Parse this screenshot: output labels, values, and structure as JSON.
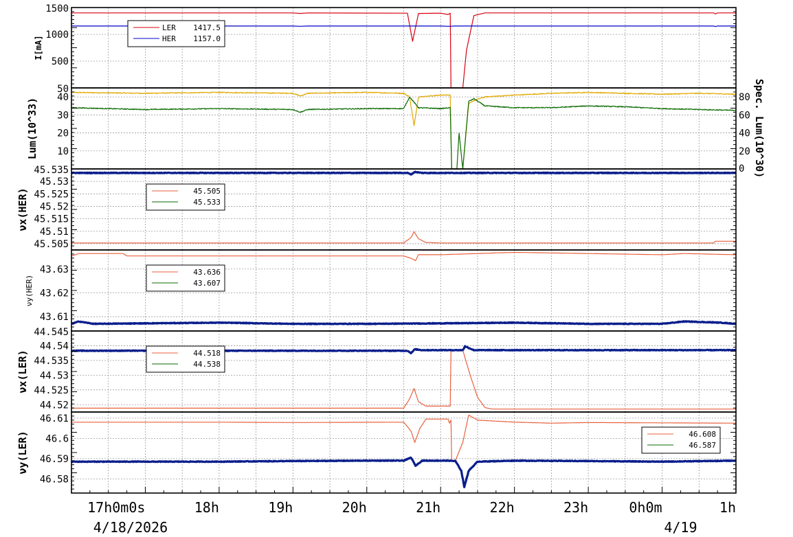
{
  "colors": {
    "ler_current": "#d7000f",
    "her_current": "#0000c8",
    "lum": "#e0a800",
    "spec_lum": "#0a6a00",
    "tune_setpoint": "#e8603c",
    "tune_measured": "#0a6a00",
    "tune_main": "#0a1e8c",
    "grid": "#9a9a9a"
  },
  "x_ticks": [
    "",
    "17h0m0s",
    "18h",
    "19h",
    "20h",
    "21h",
    "22h",
    "23h",
    "0h0m",
    "1h"
  ],
  "x_date_labels": [
    {
      "text": "4/18/2026",
      "at_hour": 16.8
    },
    {
      "text": "4/19",
      "at_hour": 24.25
    }
  ],
  "chart_data": [
    {
      "type": "line",
      "panel": "current",
      "ylabel": "I[mA]",
      "ylim": [
        0,
        1500
      ],
      "yticks": [
        "1500",
        "1000",
        "500",
        ""
      ],
      "grid": true,
      "legend_position": "top-left",
      "x_range_hours": [
        16,
        25
      ],
      "series": [
        {
          "name": "LER",
          "legend_value": "1417.5",
          "color_key": "ler_current",
          "points": [
            [
              16.0,
              1400
            ],
            [
              19.0,
              1400
            ],
            [
              19.1,
              1390
            ],
            [
              19.2,
              1400
            ],
            [
              20.55,
              1395
            ],
            [
              20.62,
              870
            ],
            [
              20.7,
              1390
            ],
            [
              21.0,
              1395
            ],
            [
              21.1,
              1370
            ],
            [
              21.13,
              1395
            ],
            [
              21.14,
              0
            ],
            [
              21.3,
              0
            ],
            [
              21.35,
              700
            ],
            [
              21.45,
              1350
            ],
            [
              21.6,
              1400
            ],
            [
              24.7,
              1400
            ],
            [
              24.72,
              1380
            ],
            [
              24.75,
              1400
            ],
            [
              25.0,
              1400
            ]
          ]
        },
        {
          "name": "HER",
          "legend_value": "1157.0",
          "color_key": "her_current",
          "points": [
            [
              16.0,
              1155
            ],
            [
              19.0,
              1155
            ],
            [
              19.1,
              1150
            ],
            [
              19.2,
              1155
            ],
            [
              21.0,
              1155
            ],
            [
              21.1,
              1150
            ],
            [
              21.2,
              1155
            ],
            [
              24.7,
              1155
            ],
            [
              24.72,
              1145
            ],
            [
              24.75,
              1155
            ],
            [
              25.0,
              1155
            ]
          ]
        }
      ]
    },
    {
      "type": "line",
      "panel": "luminosity",
      "ylabel": "Lum(10^33)",
      "y2label": "Spec. Lum(10^30)",
      "ylim": [
        0,
        45
      ],
      "y2lim": [
        0,
        90
      ],
      "yticks": [
        "40",
        "30",
        "20",
        "10"
      ],
      "y2ticks": [
        "80",
        "60",
        "40",
        "20",
        "0"
      ],
      "bottom_tick": "50",
      "grid": true,
      "x_range_hours": [
        16,
        25
      ],
      "series": [
        {
          "name": "Lum",
          "color_key": "lum",
          "axis": "left",
          "points": [
            [
              16.0,
              42.5
            ],
            [
              17.0,
              42
            ],
            [
              18.0,
              42.5
            ],
            [
              19.0,
              42
            ],
            [
              19.1,
              40.5
            ],
            [
              19.2,
              42
            ],
            [
              20.0,
              42.5
            ],
            [
              20.5,
              42
            ],
            [
              20.58,
              40
            ],
            [
              20.64,
              24
            ],
            [
              20.7,
              40
            ],
            [
              21.0,
              41
            ],
            [
              21.13,
              41
            ],
            [
              21.15,
              0
            ],
            [
              21.3,
              0
            ],
            [
              21.38,
              36
            ],
            [
              21.45,
              38
            ],
            [
              21.6,
              40
            ],
            [
              22.0,
              41
            ],
            [
              22.5,
              42
            ],
            [
              23.0,
              42.5
            ],
            [
              23.5,
              42
            ],
            [
              24.0,
              41.5
            ],
            [
              24.5,
              42
            ],
            [
              25.0,
              41.5
            ]
          ]
        },
        {
          "name": "Spec. Lum",
          "color_key": "spec_lum",
          "axis": "right",
          "points": [
            [
              16.0,
              68
            ],
            [
              17.0,
              66
            ],
            [
              18.0,
              67
            ],
            [
              19.0,
              66
            ],
            [
              19.1,
              63
            ],
            [
              19.2,
              66
            ],
            [
              20.0,
              67
            ],
            [
              20.5,
              67
            ],
            [
              20.58,
              80
            ],
            [
              20.62,
              76
            ],
            [
              20.7,
              68
            ],
            [
              21.0,
              67
            ],
            [
              21.13,
              68
            ],
            [
              21.15,
              0
            ],
            [
              21.22,
              0
            ],
            [
              21.25,
              40
            ],
            [
              21.3,
              0
            ],
            [
              21.38,
              75
            ],
            [
              21.45,
              78
            ],
            [
              21.6,
              70
            ],
            [
              22.0,
              68
            ],
            [
              22.5,
              68
            ],
            [
              23.0,
              70
            ],
            [
              23.5,
              69
            ],
            [
              24.0,
              67
            ],
            [
              24.5,
              66
            ],
            [
              25.0,
              65
            ]
          ]
        }
      ]
    },
    {
      "type": "line",
      "panel": "nux_her",
      "ylabel": "νx(HER)",
      "ylim": [
        45.5025,
        45.535
      ],
      "yticks": [
        "45.535",
        "45.53",
        "45.525",
        "45.52",
        "45.515",
        "45.51",
        "45.505"
      ],
      "grid": true,
      "legend_position": "top-left",
      "x_range_hours": [
        16,
        25
      ],
      "series": [
        {
          "name": "",
          "legend_value": "45.505",
          "color_key": "tune_setpoint",
          "points": [
            [
              16.0,
              45.5053
            ],
            [
              20.5,
              45.5053
            ],
            [
              20.6,
              45.5075
            ],
            [
              20.64,
              45.5098
            ],
            [
              20.7,
              45.507
            ],
            [
              20.8,
              45.5055
            ],
            [
              21.0,
              45.5053
            ],
            [
              24.7,
              45.5053
            ],
            [
              24.72,
              45.506
            ],
            [
              25.0,
              45.506
            ]
          ]
        },
        {
          "name": "",
          "legend_value": "45.533",
          "color_key": "tune_measured",
          "points": []
        },
        {
          "name": "",
          "color_key": "tune_main",
          "thick": true,
          "points": [
            [
              16.0,
              45.5334
            ],
            [
              20.55,
              45.5334
            ],
            [
              20.6,
              45.5328
            ],
            [
              20.65,
              45.5338
            ],
            [
              20.75,
              45.5334
            ],
            [
              25.0,
              45.5334
            ]
          ]
        }
      ]
    },
    {
      "type": "line",
      "panel": "nuy_her",
      "ylabel": "νy(HER)",
      "ylim": [
        43.604,
        43.638
      ],
      "yticks": [
        "43.63",
        "43.62",
        "43.61"
      ],
      "grid": true,
      "legend_position": "top-left",
      "x_range_hours": [
        16,
        25
      ],
      "series": [
        {
          "name": "",
          "legend_value": "43.636",
          "color_key": "tune_setpoint",
          "points": [
            [
              16.0,
              43.6355
            ],
            [
              16.1,
              43.6365
            ],
            [
              16.7,
              43.6365
            ],
            [
              16.75,
              43.6355
            ],
            [
              17.0,
              43.6355
            ],
            [
              17.5,
              43.6355
            ],
            [
              18.0,
              43.6355
            ],
            [
              19.0,
              43.6355
            ],
            [
              20.0,
              43.6355
            ],
            [
              20.5,
              43.6355
            ],
            [
              20.6,
              43.6345
            ],
            [
              20.66,
              43.6335
            ],
            [
              20.7,
              43.636
            ],
            [
              21.0,
              43.636
            ],
            [
              22.0,
              43.637
            ],
            [
              23.0,
              43.6365
            ],
            [
              24.0,
              43.636
            ],
            [
              24.3,
              43.6365
            ],
            [
              25.0,
              43.636
            ]
          ]
        },
        {
          "name": "",
          "legend_value": "43.607",
          "color_key": "tune_measured",
          "points": []
        },
        {
          "name": "",
          "color_key": "tune_main",
          "thick": true,
          "points": [
            [
              16.0,
              43.607
            ],
            [
              16.1,
              43.608
            ],
            [
              16.3,
              43.607
            ],
            [
              18.0,
              43.6075
            ],
            [
              19.0,
              43.607
            ],
            [
              20.0,
              43.607
            ],
            [
              21.0,
              43.6072
            ],
            [
              22.0,
              43.6075
            ],
            [
              23.0,
              43.607
            ],
            [
              24.0,
              43.607
            ],
            [
              24.3,
              43.608
            ],
            [
              24.8,
              43.6075
            ],
            [
              25.0,
              43.607
            ]
          ]
        }
      ]
    },
    {
      "type": "line",
      "panel": "nux_ler",
      "ylabel": "νx(LER)",
      "ylim": [
        44.5175,
        44.545
      ],
      "yticks": [
        "44.545",
        "44.54",
        "44.535",
        "44.53",
        "44.525",
        "44.52"
      ],
      "grid": true,
      "legend_position": "top-left",
      "x_range_hours": [
        16,
        25
      ],
      "series": [
        {
          "name": "",
          "legend_value": "44.518",
          "color_key": "tune_setpoint",
          "points": [
            [
              16.0,
              44.5188
            ],
            [
              20.5,
              44.5188
            ],
            [
              20.58,
              44.522
            ],
            [
              20.64,
              44.5255
            ],
            [
              20.7,
              44.521
            ],
            [
              20.8,
              44.5195
            ],
            [
              21.1,
              44.5195
            ],
            [
              21.13,
              44.5195
            ],
            [
              21.14,
              44.5385
            ],
            [
              21.3,
              44.5385
            ],
            [
              21.4,
              44.53
            ],
            [
              21.5,
              44.5225
            ],
            [
              21.6,
              44.519
            ],
            [
              21.7,
              44.5185
            ],
            [
              25.0,
              44.5185
            ]
          ]
        },
        {
          "name": "",
          "legend_value": "44.538",
          "color_key": "tune_measured",
          "points": []
        },
        {
          "name": "",
          "color_key": "tune_main",
          "thick": true,
          "points": [
            [
              16.0,
              44.5383
            ],
            [
              20.55,
              44.5383
            ],
            [
              20.6,
              44.5375
            ],
            [
              20.65,
              44.5388
            ],
            [
              20.75,
              44.5385
            ],
            [
              21.1,
              44.5385
            ],
            [
              21.3,
              44.5385
            ],
            [
              21.33,
              44.5398
            ],
            [
              21.45,
              44.5385
            ],
            [
              25.0,
              44.5385
            ]
          ]
        }
      ]
    },
    {
      "type": "line",
      "panel": "nuy_ler",
      "ylabel": "νy(LER)",
      "ylim": [
        46.573,
        46.613
      ],
      "yticks": [
        "46.61",
        "46.6",
        "46.59",
        "46.58"
      ],
      "grid": true,
      "legend_position": "top-right",
      "x_range_hours": [
        16,
        25
      ],
      "series": [
        {
          "name": "",
          "legend_value": "46.608",
          "color_key": "tune_setpoint",
          "points": [
            [
              16.0,
              46.608
            ],
            [
              18.0,
              46.608
            ],
            [
              19.0,
              46.6078
            ],
            [
              20.5,
              46.608
            ],
            [
              20.6,
              46.6035
            ],
            [
              20.65,
              46.598
            ],
            [
              20.72,
              46.605
            ],
            [
              20.8,
              46.6095
            ],
            [
              21.1,
              46.6095
            ],
            [
              21.12,
              46.6075
            ],
            [
              21.14,
              46.609
            ],
            [
              21.15,
              46.589
            ],
            [
              21.2,
              46.589
            ],
            [
              21.3,
              46.598
            ],
            [
              21.38,
              46.6115
            ],
            [
              21.5,
              46.609
            ],
            [
              22.0,
              46.608
            ],
            [
              22.5,
              46.6075
            ],
            [
              23.0,
              46.6078
            ],
            [
              25.0,
              46.6075
            ]
          ]
        },
        {
          "name": "",
          "legend_value": "46.587",
          "color_key": "tune_measured",
          "points": []
        },
        {
          "name": "",
          "color_key": "tune_main",
          "thick": true,
          "points": [
            [
              16.0,
              46.5885
            ],
            [
              18.0,
              46.5885
            ],
            [
              19.0,
              46.5888
            ],
            [
              20.0,
              46.589
            ],
            [
              20.5,
              46.589
            ],
            [
              20.6,
              46.5905
            ],
            [
              20.66,
              46.5865
            ],
            [
              20.75,
              46.589
            ],
            [
              21.1,
              46.589
            ],
            [
              21.2,
              46.5888
            ],
            [
              21.28,
              46.584
            ],
            [
              21.32,
              46.576
            ],
            [
              21.38,
              46.584
            ],
            [
              21.5,
              46.5885
            ],
            [
              22.0,
              46.589
            ],
            [
              23.0,
              46.5888
            ],
            [
              24.0,
              46.5885
            ],
            [
              25.0,
              46.589
            ]
          ]
        }
      ]
    }
  ]
}
